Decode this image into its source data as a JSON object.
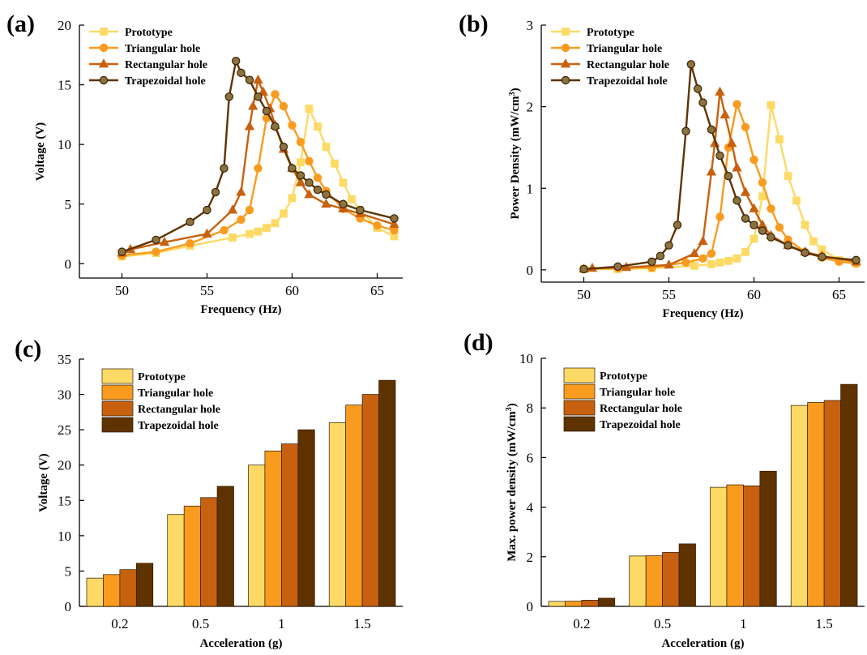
{
  "colors": {
    "prototype": "#FDDA65",
    "triangular": "#F99B1E",
    "rectangular": "#C8610F",
    "trapezoidal": "#5E3300",
    "trapezoidal_marker": "#8B7340"
  },
  "chart_data": [
    {
      "id": "a",
      "panel_label": "(a)",
      "type": "line",
      "xlabel": "Frequency (Hz)",
      "ylabel": "Voltage (V)",
      "xlim": [
        47.5,
        66.5
      ],
      "ylim": [
        -1.2,
        20
      ],
      "xticks": [
        50,
        55,
        60,
        65
      ],
      "yticks": [
        0,
        5,
        10,
        15,
        20
      ],
      "legend": [
        "Prototype",
        "Triangular hole",
        "Rectangular hole",
        "Trapezoidal hole"
      ],
      "series": [
        {
          "name": "Prototype",
          "marker": "square",
          "x": [
            50,
            52,
            54,
            56.5,
            57.5,
            58,
            58.5,
            59,
            59.5,
            60,
            60.5,
            61,
            61.5,
            62,
            62.5,
            63,
            63.5,
            64,
            65,
            66
          ],
          "y": [
            0.6,
            0.9,
            1.5,
            2.2,
            2.5,
            2.7,
            3.0,
            3.4,
            4.2,
            5.5,
            8.5,
            13.0,
            11.5,
            9.8,
            8.4,
            6.8,
            5.4,
            4.5,
            3.0,
            2.3
          ]
        },
        {
          "name": "Triangular hole",
          "marker": "circle",
          "x": [
            50,
            52,
            54,
            56,
            57,
            57.5,
            58,
            58.5,
            59,
            59.5,
            60,
            60.5,
            61,
            61.5,
            62,
            63,
            64,
            65,
            66
          ],
          "y": [
            0.7,
            1.0,
            1.7,
            2.8,
            3.7,
            4.5,
            8.0,
            12.2,
            14.2,
            13.2,
            11.6,
            10.2,
            8.6,
            7.2,
            6.1,
            4.6,
            3.8,
            3.2,
            2.8
          ]
        },
        {
          "name": "Rectangular hole",
          "marker": "triangle",
          "x": [
            50,
            50.5,
            52.5,
            55,
            56.5,
            57,
            57.5,
            57.7,
            58,
            58.3,
            58.7,
            59,
            59.5,
            60,
            60.5,
            61,
            62,
            63,
            64,
            66
          ],
          "y": [
            0.9,
            1.2,
            1.8,
            2.5,
            4.5,
            6.0,
            11.5,
            13.2,
            15.4,
            14.4,
            13.0,
            11.6,
            9.6,
            8.0,
            6.8,
            5.8,
            5.0,
            4.6,
            4.2,
            3.3
          ]
        },
        {
          "name": "Trapezoidal hole",
          "marker": "circle",
          "x": [
            50,
            52,
            54,
            55,
            55.5,
            56,
            56.3,
            56.7,
            57,
            57.5,
            58,
            58.5,
            59,
            59.5,
            60,
            60.5,
            61,
            61.5,
            62,
            63,
            64,
            66
          ],
          "y": [
            1.0,
            2.0,
            3.5,
            4.5,
            6.0,
            8.0,
            14.0,
            17.0,
            16.0,
            15.4,
            14.0,
            12.8,
            11.5,
            9.8,
            8.0,
            7.4,
            6.8,
            6.2,
            5.8,
            5.0,
            4.5,
            3.8
          ]
        }
      ]
    },
    {
      "id": "b",
      "panel_label": "(b)",
      "type": "line",
      "xlabel": "Frequency (Hz)",
      "ylabel": "Power Density (mW/cm",
      "ylabel_sup": "3",
      "ylabel_end": ")",
      "xlim": [
        47.5,
        66.5
      ],
      "ylim": [
        -0.15,
        3
      ],
      "xticks": [
        50,
        55,
        60,
        65
      ],
      "yticks": [
        0,
        1,
        2,
        3
      ],
      "legend": [
        "Prototype",
        "Triangular hole",
        "Rectangular hole",
        "Trapezoidal hole"
      ],
      "series": [
        {
          "name": "Prototype",
          "marker": "square",
          "x": [
            50,
            52,
            54,
            56.5,
            57.5,
            58,
            58.5,
            59,
            59.5,
            60,
            60.5,
            61,
            61.5,
            62,
            62.5,
            63,
            63.5,
            64,
            65,
            66
          ],
          "y": [
            0.01,
            0.01,
            0.02,
            0.05,
            0.07,
            0.09,
            0.11,
            0.14,
            0.22,
            0.38,
            0.9,
            2.02,
            1.6,
            1.15,
            0.85,
            0.55,
            0.35,
            0.25,
            0.12,
            0.08
          ]
        },
        {
          "name": "Triangular hole",
          "marker": "circle",
          "x": [
            50,
            52,
            54,
            56,
            57,
            57.5,
            58,
            58.5,
            59,
            59.5,
            60,
            60.5,
            61,
            61.5,
            62,
            63,
            64,
            65,
            66
          ],
          "y": [
            0.01,
            0.02,
            0.03,
            0.09,
            0.14,
            0.2,
            0.65,
            1.5,
            2.03,
            1.75,
            1.35,
            1.07,
            0.75,
            0.52,
            0.37,
            0.22,
            0.15,
            0.1,
            0.08
          ]
        },
        {
          "name": "Rectangular hole",
          "marker": "triangle",
          "x": [
            50,
            50.5,
            52.5,
            55,
            56.5,
            57,
            57.5,
            57.7,
            58,
            58.3,
            58.7,
            59,
            59.5,
            60,
            60.5,
            61,
            62,
            63,
            64,
            66
          ],
          "y": [
            0.01,
            0.02,
            0.03,
            0.06,
            0.2,
            0.35,
            1.2,
            1.55,
            2.18,
            1.9,
            1.55,
            1.25,
            0.95,
            0.75,
            0.55,
            0.42,
            0.3,
            0.22,
            0.17,
            0.1
          ]
        },
        {
          "name": "Trapezoidal hole",
          "marker": "circle",
          "x": [
            50,
            52,
            54,
            54.5,
            55,
            55.5,
            56,
            56.3,
            56.7,
            57,
            57.5,
            58,
            58.5,
            59,
            59.5,
            60,
            60.5,
            61,
            62,
            63,
            64,
            66
          ],
          "y": [
            0.01,
            0.04,
            0.1,
            0.17,
            0.3,
            0.55,
            1.7,
            2.52,
            2.22,
            2.05,
            1.72,
            1.4,
            1.15,
            0.85,
            0.63,
            0.55,
            0.48,
            0.4,
            0.3,
            0.21,
            0.16,
            0.12
          ]
        }
      ]
    },
    {
      "id": "c",
      "panel_label": "(c)",
      "type": "bar",
      "xlabel": "Acceleration (g)",
      "ylabel": "Voltage (V)",
      "ylim": [
        0,
        35
      ],
      "yticks": [
        0,
        5,
        10,
        15,
        20,
        25,
        30,
        35
      ],
      "categories": [
        "0.2",
        "0.5",
        "1",
        "1.5"
      ],
      "legend": [
        "Prototype",
        "Triangular hole",
        "Rectangular hole",
        "Trapezoidal hole"
      ],
      "series": [
        {
          "name": "Prototype",
          "values": [
            4.0,
            13.0,
            20.0,
            26.0
          ]
        },
        {
          "name": "Triangular hole",
          "values": [
            4.5,
            14.2,
            22.0,
            28.5
          ]
        },
        {
          "name": "Rectangular hole",
          "values": [
            5.2,
            15.4,
            23.0,
            30.0
          ]
        },
        {
          "name": "Trapezoidal hole",
          "values": [
            6.1,
            17.0,
            25.0,
            32.0
          ]
        }
      ]
    },
    {
      "id": "d",
      "panel_label": "(d)",
      "type": "bar",
      "xlabel": "Acceleration (g)",
      "ylabel": "Max. power density (mW/cm",
      "ylabel_sup": "3",
      "ylabel_end": ")",
      "ylim": [
        0,
        10
      ],
      "yticks": [
        0,
        2,
        4,
        6,
        8,
        10
      ],
      "categories": [
        "0.2",
        "0.5",
        "1",
        "1.5"
      ],
      "legend": [
        "Prototype",
        "Triangular hole",
        "Rectangular hole",
        "Trapezoidal hole"
      ],
      "series": [
        {
          "name": "Prototype",
          "values": [
            0.2,
            2.03,
            4.8,
            8.1
          ]
        },
        {
          "name": "Triangular hole",
          "values": [
            0.21,
            2.04,
            4.9,
            8.22
          ]
        },
        {
          "name": "Rectangular hole",
          "values": [
            0.25,
            2.18,
            4.86,
            8.3
          ]
        },
        {
          "name": "Trapezoidal hole",
          "values": [
            0.33,
            2.52,
            5.45,
            8.95
          ]
        }
      ]
    }
  ]
}
